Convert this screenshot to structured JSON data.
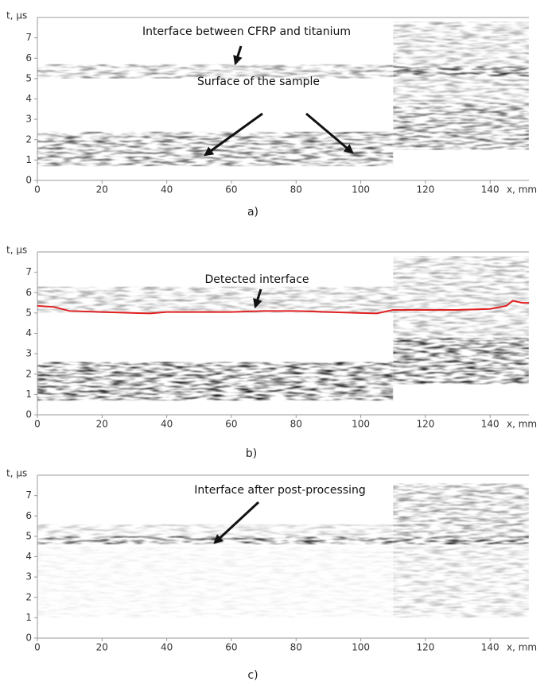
{
  "chart_data": [
    {
      "type": "image",
      "panel_label": "a)",
      "y_label": "t, µs",
      "x_label": "x, mm",
      "xlim": [
        0,
        152
      ],
      "xticks": [
        0,
        20,
        40,
        60,
        80,
        100,
        120,
        140
      ],
      "ylim": [
        0,
        8
      ],
      "yticks": [
        0,
        1,
        2,
        3,
        4,
        5,
        6,
        7
      ],
      "annotations": [
        "Interface between CFRP and titanium",
        "Surface of the sample"
      ]
    },
    {
      "type": "line",
      "panel_label": "b)",
      "y_label": "t, µs",
      "x_label": "x, mm",
      "xlim": [
        0,
        152
      ],
      "xticks": [
        0,
        20,
        40,
        60,
        80,
        100,
        120,
        140
      ],
      "ylim": [
        0,
        8
      ],
      "yticks": [
        0,
        1,
        2,
        3,
        4,
        5,
        6,
        7
      ],
      "annotations": [
        "Detected interface"
      ],
      "series": [
        {
          "color": "#e02020",
          "x": [
            0,
            5,
            10,
            20,
            30,
            35,
            40,
            50,
            60,
            70,
            80,
            90,
            100,
            105,
            110,
            120,
            130,
            140,
            145,
            147,
            150,
            152
          ],
          "values": [
            5.35,
            5.3,
            5.1,
            5.05,
            5.0,
            4.98,
            5.05,
            5.05,
            5.05,
            5.1,
            5.1,
            5.05,
            5.0,
            4.98,
            5.15,
            5.15,
            5.15,
            5.2,
            5.35,
            5.6,
            5.5,
            5.5
          ]
        }
      ]
    },
    {
      "type": "image",
      "panel_label": "c)",
      "y_label": "t, µs",
      "x_label": "x, mm",
      "xlim": [
        0,
        152
      ],
      "xticks": [
        0,
        20,
        40,
        60,
        80,
        100,
        120,
        140
      ],
      "ylim": [
        0,
        8
      ],
      "yticks": [
        0,
        1,
        2,
        3,
        4,
        5,
        6,
        7
      ],
      "annotations": [
        "Interface after post-processing"
      ]
    }
  ]
}
